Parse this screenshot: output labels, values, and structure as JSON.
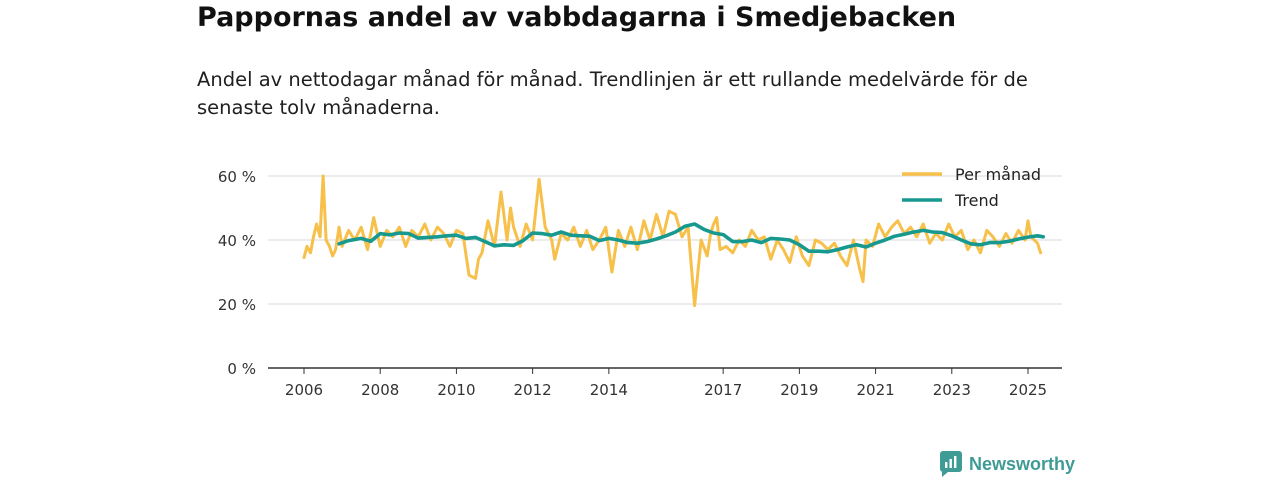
{
  "chart_data": {
    "type": "line",
    "title": "Pappornas andel av vabbdagarna i Smedjebacken",
    "subtitle": "Andel av nettodagar månad för månad. Trendlinjen är ett rullande medelvärde för de senaste tolv månaderna.",
    "ylim": [
      0,
      60
    ],
    "xlim": [
      2006,
      2025.6
    ],
    "y_ticks": [
      0,
      20,
      40,
      60
    ],
    "y_tick_labels": [
      "0 %",
      "20 %",
      "40 %",
      "60 %"
    ],
    "x_ticks": [
      2006,
      2008,
      2010,
      2012,
      2014,
      2017,
      2019,
      2021,
      2023,
      2025
    ],
    "x_tick_labels": [
      "2006",
      "2008",
      "2010",
      "2012",
      "2014",
      "2017",
      "2019",
      "2021",
      "2023",
      "2025"
    ],
    "legend_position": "top-right",
    "grid": true,
    "series": [
      {
        "name": "Per månad",
        "color": "#f7c04a",
        "x": [
          2006.0,
          2006.08,
          2006.17,
          2006.25,
          2006.33,
          2006.42,
          2006.5,
          2006.58,
          2006.67,
          2006.75,
          2006.83,
          2006.92,
          2007.0,
          2007.17,
          2007.33,
          2007.5,
          2007.67,
          2007.83,
          2008.0,
          2008.17,
          2008.33,
          2008.5,
          2008.67,
          2008.83,
          2009.0,
          2009.17,
          2009.33,
          2009.5,
          2009.67,
          2009.83,
          2010.0,
          2010.17,
          2010.33,
          2010.5,
          2010.58,
          2010.67,
          2010.83,
          2011.0,
          2011.17,
          2011.33,
          2011.42,
          2011.5,
          2011.67,
          2011.83,
          2012.0,
          2012.17,
          2012.33,
          2012.5,
          2012.58,
          2012.75,
          2012.92,
          2013.08,
          2013.25,
          2013.42,
          2013.58,
          2013.75,
          2013.92,
          2014.08,
          2014.25,
          2014.42,
          2014.58,
          2014.75,
          2014.92,
          2015.08,
          2015.25,
          2015.42,
          2015.58,
          2015.75,
          2015.92,
          2016.08,
          2016.25,
          2016.42,
          2016.58,
          2016.67,
          2016.75,
          2016.83,
          2016.92,
          2017.08,
          2017.25,
          2017.42,
          2017.58,
          2017.75,
          2017.92,
          2018.08,
          2018.25,
          2018.42,
          2018.58,
          2018.75,
          2018.92,
          2019.08,
          2019.25,
          2019.42,
          2019.58,
          2019.75,
          2019.92,
          2020.08,
          2020.25,
          2020.42,
          2020.58,
          2020.67,
          2020.75,
          2020.92,
          2021.08,
          2021.25,
          2021.42,
          2021.58,
          2021.75,
          2021.92,
          2022.08,
          2022.25,
          2022.42,
          2022.58,
          2022.75,
          2022.92,
          2023.08,
          2023.25,
          2023.42,
          2023.58,
          2023.75,
          2023.92,
          2024.08,
          2024.25,
          2024.42,
          2024.58,
          2024.75,
          2024.92,
          2025.0,
          2025.08,
          2025.25,
          2025.33
        ],
        "values": [
          34.5,
          38,
          36,
          41,
          45,
          41,
          60,
          40,
          38,
          35,
          37,
          44,
          38,
          43,
          40,
          44,
          37,
          47,
          38,
          43,
          41,
          44,
          38,
          43,
          41,
          45,
          40,
          44,
          42,
          38,
          43,
          42,
          29,
          28,
          34,
          36,
          46,
          38,
          55,
          40,
          50,
          44,
          38,
          45,
          40,
          59,
          44,
          40,
          34,
          42,
          40,
          44,
          38,
          43,
          37,
          40,
          44,
          30,
          43,
          38,
          44,
          37,
          46,
          40,
          48,
          41,
          49,
          48,
          41,
          44,
          19.5,
          40,
          35,
          42,
          45,
          47,
          37,
          38,
          36,
          40,
          38,
          43,
          40,
          41,
          34,
          40,
          37,
          33,
          41,
          35,
          32,
          40,
          39,
          37,
          39,
          35,
          32,
          40,
          31,
          27,
          40,
          38,
          45,
          41,
          44,
          46,
          42,
          44,
          41,
          45,
          39,
          42,
          40,
          45,
          41,
          43,
          37,
          40,
          36,
          43,
          41,
          38,
          42,
          39,
          43,
          40,
          46,
          41,
          39,
          36
        ]
      },
      {
        "name": "Trend",
        "color": "#17998f",
        "x": [
          2006.92,
          2007.17,
          2007.5,
          2007.75,
          2008.0,
          2008.25,
          2008.5,
          2008.75,
          2009.0,
          2009.25,
          2009.5,
          2009.75,
          2010.0,
          2010.25,
          2010.5,
          2010.75,
          2011.0,
          2011.25,
          2011.5,
          2011.75,
          2012.0,
          2012.25,
          2012.5,
          2012.75,
          2013.0,
          2013.25,
          2013.5,
          2013.75,
          2014.0,
          2014.25,
          2014.5,
          2014.75,
          2015.0,
          2015.25,
          2015.5,
          2015.75,
          2016.0,
          2016.25,
          2016.5,
          2016.75,
          2017.0,
          2017.25,
          2017.5,
          2017.75,
          2018.0,
          2018.25,
          2018.5,
          2018.75,
          2019.0,
          2019.25,
          2019.5,
          2019.75,
          2020.0,
          2020.25,
          2020.5,
          2020.75,
          2021.0,
          2021.25,
          2021.5,
          2021.75,
          2022.0,
          2022.25,
          2022.5,
          2022.75,
          2023.0,
          2023.25,
          2023.5,
          2023.75,
          2024.0,
          2024.25,
          2024.5,
          2024.75,
          2025.0,
          2025.25,
          2025.4
        ],
        "values": [
          38.8,
          39.8,
          40.5,
          39.6,
          42.0,
          41.6,
          42.2,
          42.0,
          40.6,
          40.8,
          41.0,
          41.3,
          41.5,
          40.5,
          40.8,
          39.5,
          38.2,
          38.5,
          38.3,
          39.8,
          42.2,
          42.0,
          41.5,
          42.5,
          41.5,
          41.3,
          41.2,
          39.8,
          40.5,
          40.0,
          39.2,
          39.0,
          39.5,
          40.3,
          41.3,
          42.5,
          44.3,
          45.0,
          43.3,
          42.2,
          41.7,
          39.5,
          39.5,
          40.0,
          39.2,
          40.5,
          40.3,
          40.0,
          38.5,
          36.5,
          36.5,
          36.3,
          37.0,
          37.8,
          38.5,
          37.8,
          39.0,
          40.0,
          41.2,
          41.8,
          42.5,
          43.0,
          42.5,
          42.3,
          41.3,
          40.0,
          38.8,
          38.5,
          39.2,
          39.2,
          39.6,
          40.3,
          40.9,
          41.3,
          41.0
        ]
      }
    ]
  },
  "brand": {
    "name": "Newsworthy"
  }
}
